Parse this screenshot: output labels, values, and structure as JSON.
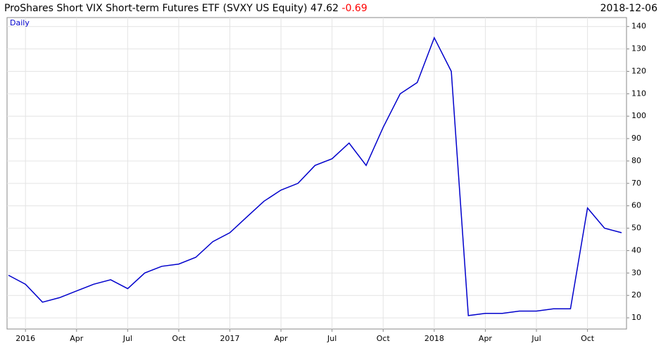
{
  "chart_data": {
    "type": "line",
    "title": "ProShares Short VIX Short-term Futures ETF  (SVXY US Equity)",
    "last_price": 47.62,
    "change": -0.69,
    "change_color": "#ff0000",
    "date": "2018-12-06",
    "frequency": "Daily",
    "x": [
      "2015-12",
      "2016-01",
      "2016-02",
      "2016-03",
      "2016-04",
      "2016-05",
      "2016-06",
      "2016-07",
      "2016-08",
      "2016-09",
      "2016-10",
      "2016-11",
      "2016-12",
      "2017-01",
      "2017-02",
      "2017-03",
      "2017-04",
      "2017-05",
      "2017-06",
      "2017-07",
      "2017-08",
      "2017-09",
      "2017-10",
      "2017-11",
      "2017-12",
      "2018-01",
      "2018-02",
      "2018-03",
      "2018-04",
      "2018-05",
      "2018-06",
      "2018-07",
      "2018-08",
      "2018-09",
      "2018-10",
      "2018-11",
      "2018-12"
    ],
    "series": [
      {
        "name": "SVXY US Equity",
        "color": "#0000cc",
        "values": [
          29,
          25,
          17,
          19,
          22,
          25,
          27,
          23,
          30,
          33,
          34,
          37,
          44,
          48,
          55,
          62,
          67,
          70,
          78,
          81,
          88,
          78,
          95,
          110,
          115,
          135,
          120,
          11,
          12,
          12,
          13,
          13,
          14,
          14,
          59,
          50,
          48
        ]
      }
    ],
    "xlim": [
      "2015-12",
      "2018-12"
    ],
    "xticks": [
      {
        "value": "2016-01",
        "label": "2016"
      },
      {
        "value": "2016-04",
        "label": "Apr"
      },
      {
        "value": "2016-07",
        "label": "Jul"
      },
      {
        "value": "2016-10",
        "label": "Oct"
      },
      {
        "value": "2017-01",
        "label": "2017"
      },
      {
        "value": "2017-04",
        "label": "Apr"
      },
      {
        "value": "2017-07",
        "label": "Jul"
      },
      {
        "value": "2017-10",
        "label": "Oct"
      },
      {
        "value": "2018-01",
        "label": "2018"
      },
      {
        "value": "2018-04",
        "label": "Apr"
      },
      {
        "value": "2018-07",
        "label": "Jul"
      },
      {
        "value": "2018-10",
        "label": "Oct"
      }
    ],
    "ylim": [
      5,
      144
    ],
    "yticks": [
      10,
      20,
      30,
      40,
      50,
      60,
      70,
      80,
      90,
      100,
      110,
      120,
      130,
      140
    ],
    "grid": true
  }
}
